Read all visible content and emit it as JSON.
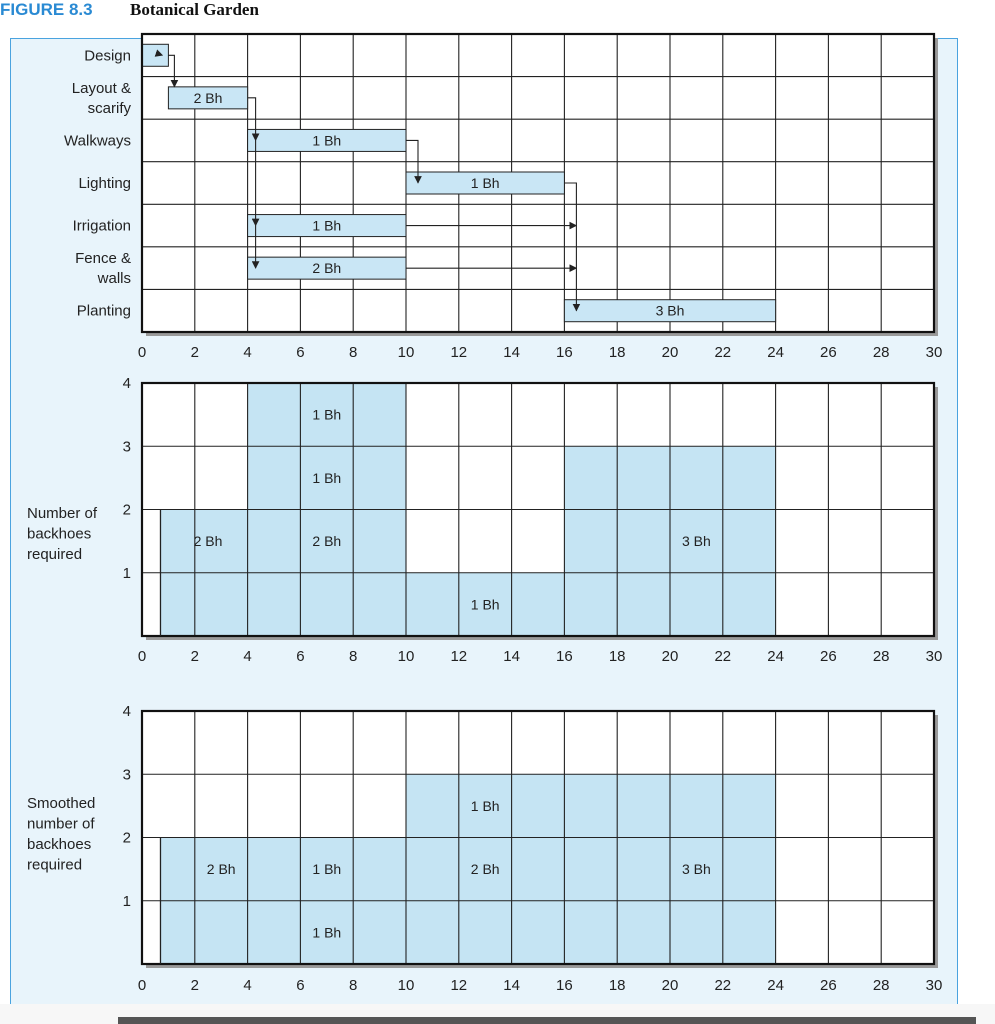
{
  "figure": {
    "number": "FIGURE 8.3",
    "title": "Botanical Garden"
  },
  "chart_data": [
    {
      "type": "gantt",
      "activities": [
        {
          "label": "Design",
          "start": 0,
          "end": 1,
          "bar_label": ""
        },
        {
          "label": "Layout & scarify",
          "start": 1,
          "end": 4,
          "bar_label": "2 Bh"
        },
        {
          "label": "Walkways",
          "start": 4,
          "end": 10,
          "bar_label": "1 Bh"
        },
        {
          "label": "Lighting",
          "start": 10,
          "end": 16,
          "bar_label": "1 Bh"
        },
        {
          "label": "Irrigation",
          "start": 4,
          "end": 10,
          "bar_label": "1 Bh"
        },
        {
          "label": "Fence & walls",
          "start": 4,
          "end": 10,
          "bar_label": "2 Bh"
        },
        {
          "label": "Planting",
          "start": 16,
          "end": 24,
          "bar_label": "3 Bh"
        }
      ],
      "xlim": [
        0,
        30
      ],
      "xticks": [
        0,
        2,
        4,
        6,
        8,
        10,
        12,
        14,
        16,
        18,
        20,
        22,
        24,
        26,
        28,
        30
      ],
      "grid": true
    },
    {
      "type": "area",
      "ylabel": "Number of backhoes required",
      "xlim": [
        0,
        30
      ],
      "ylim": [
        0,
        4
      ],
      "xticks": [
        0,
        2,
        4,
        6,
        8,
        10,
        12,
        14,
        16,
        18,
        20,
        22,
        24,
        26,
        28,
        30
      ],
      "yticks": [
        1,
        2,
        3,
        4
      ],
      "steps": [
        {
          "x0": 0.7,
          "x1": 4,
          "y": 2
        },
        {
          "x0": 4,
          "x1": 10,
          "y": 4
        },
        {
          "x0": 10,
          "x1": 16,
          "y": 1
        },
        {
          "x0": 16,
          "x1": 24,
          "y": 3
        }
      ],
      "annotations": [
        {
          "text": "2 Bh",
          "x": 2.5,
          "y": 1.5
        },
        {
          "text": "1 Bh",
          "x": 7,
          "y": 3.5
        },
        {
          "text": "1 Bh",
          "x": 7,
          "y": 2.5
        },
        {
          "text": "2 Bh",
          "x": 7,
          "y": 1.5
        },
        {
          "text": "1 Bh",
          "x": 13,
          "y": 0.5
        },
        {
          "text": "3 Bh",
          "x": 21,
          "y": 1.5
        }
      ],
      "grid": true
    },
    {
      "type": "area",
      "ylabel": "Smoothed number of backhoes required",
      "xlim": [
        0,
        30
      ],
      "ylim": [
        0,
        4
      ],
      "xticks": [
        0,
        2,
        4,
        6,
        8,
        10,
        12,
        14,
        16,
        18,
        20,
        22,
        24,
        26,
        28,
        30
      ],
      "yticks": [
        1,
        2,
        3,
        4
      ],
      "steps": [
        {
          "x0": 0.7,
          "x1": 10,
          "y": 2
        },
        {
          "x0": 10,
          "x1": 24,
          "y": 3
        }
      ],
      "annotations": [
        {
          "text": "2 Bh",
          "x": 3,
          "y": 1.5
        },
        {
          "text": "1 Bh",
          "x": 7,
          "y": 1.5
        },
        {
          "text": "1 Bh",
          "x": 7,
          "y": 0.5
        },
        {
          "text": "1 Bh",
          "x": 13,
          "y": 2.5
        },
        {
          "text": "2 Bh",
          "x": 13,
          "y": 1.5
        },
        {
          "text": "3 Bh",
          "x": 21,
          "y": 1.5
        }
      ],
      "grid": true
    }
  ]
}
